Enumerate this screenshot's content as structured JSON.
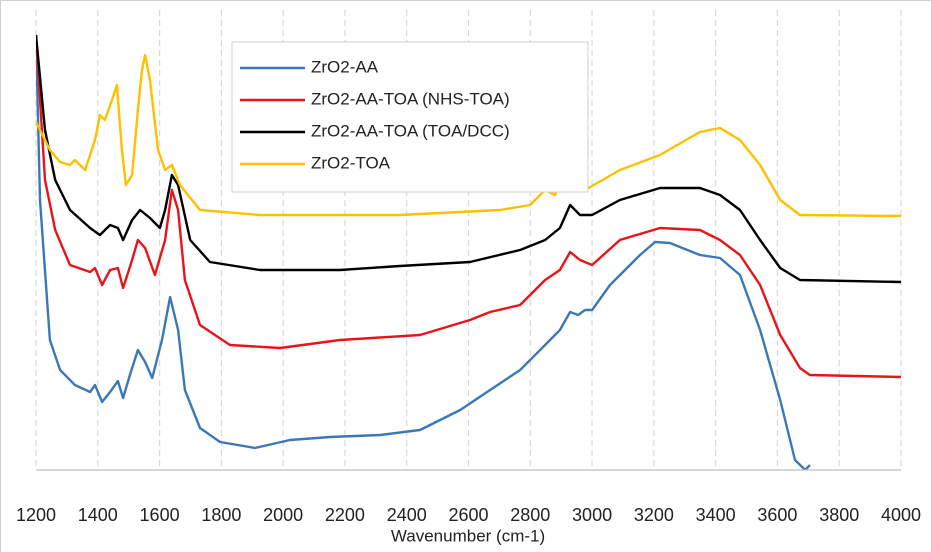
{
  "chart_data": {
    "type": "line",
    "x_label": "Wavenumber (cm-1)",
    "xlim": [
      1200,
      4000
    ],
    "xticks": [
      1200,
      1400,
      1600,
      1800,
      2000,
      2200,
      2400,
      2600,
      2800,
      3000,
      3200,
      3400,
      3600,
      3800,
      4000
    ],
    "ylim": [
      0,
      460
    ],
    "grid": true,
    "legend": "top",
    "series": [
      {
        "name": "ZrO2-AA",
        "color": "#3b78b8",
        "x": [
          1200,
          1213,
          1245,
          1278,
          1326,
          1375,
          1391,
          1414,
          1440,
          1465,
          1482,
          1504,
          1530,
          1553,
          1576,
          1608,
          1634,
          1660,
          1682,
          1731,
          1796,
          1909,
          2022,
          2152,
          2314,
          2443,
          2573,
          2670,
          2767,
          2848,
          2896,
          2929,
          2955,
          2977,
          3000,
          3058,
          3155,
          3204,
          3252,
          3349,
          3414,
          3479,
          3544,
          3609,
          3657,
          3690,
          3705
        ],
        "values": [
          435,
          270,
          130,
          100,
          85,
          78,
          85,
          68,
          78,
          89,
          72,
          95,
          120,
          108,
          92,
          130,
          173,
          140,
          80,
          42,
          28,
          22,
          30,
          33,
          35,
          40,
          60,
          80,
          100,
          125,
          140,
          158,
          155,
          160,
          160,
          185,
          215,
          228,
          227,
          215,
          212,
          195,
          140,
          70,
          10,
          0,
          5
        ]
      },
      {
        "name": "ZrO2-AA-TOA (NHS-TOA)",
        "color": "#e8141b",
        "x": [
          1200,
          1229,
          1262,
          1310,
          1375,
          1391,
          1414,
          1440,
          1465,
          1482,
          1511,
          1530,
          1553,
          1585,
          1618,
          1640,
          1660,
          1682,
          1731,
          1828,
          1990,
          2184,
          2443,
          2605,
          2670,
          2767,
          2848,
          2896,
          2929,
          2961,
          3000,
          3090,
          3220,
          3349,
          3414,
          3479,
          3544,
          3609,
          3673,
          3705,
          4000
        ],
        "values": [
          435,
          290,
          240,
          205,
          198,
          202,
          185,
          200,
          202,
          182,
          210,
          230,
          222,
          195,
          230,
          280,
          260,
          190,
          145,
          125,
          122,
          130,
          135,
          150,
          158,
          165,
          190,
          200,
          218,
          210,
          205,
          230,
          242,
          240,
          230,
          215,
          185,
          135,
          102,
          95,
          93
        ]
      },
      {
        "name": "ZrO2-AA-TOA (TOA/DCC)",
        "color": "#000000",
        "x": [
          1200,
          1229,
          1262,
          1310,
          1375,
          1407,
          1440,
          1465,
          1482,
          1511,
          1537,
          1569,
          1601,
          1618,
          1640,
          1660,
          1699,
          1763,
          1925,
          2184,
          2378,
          2605,
          2767,
          2848,
          2896,
          2929,
          2961,
          3000,
          3090,
          3220,
          3349,
          3414,
          3479,
          3544,
          3609,
          3673,
          4000
        ],
        "values": [
          435,
          340,
          290,
          260,
          242,
          235,
          245,
          242,
          230,
          250,
          260,
          252,
          242,
          260,
          295,
          285,
          230,
          208,
          200,
          200,
          204,
          208,
          220,
          230,
          242,
          265,
          255,
          255,
          270,
          282,
          282,
          275,
          260,
          230,
          202,
          190,
          188
        ]
      },
      {
        "name": "ZrO2-TOA",
        "color": "#ffc000",
        "x": [
          1200,
          1213,
          1229,
          1245,
          1278,
          1310,
          1326,
          1359,
          1391,
          1407,
          1423,
          1446,
          1462,
          1478,
          1491,
          1511,
          1530,
          1543,
          1553,
          1569,
          1595,
          1618,
          1640,
          1666,
          1731,
          1925,
          2378,
          2702,
          2799,
          2848,
          2880,
          2922,
          2945,
          2977,
          3090,
          3220,
          3349,
          3414,
          3479,
          3544,
          3609,
          3673,
          4000
        ],
        "values": [
          348,
          340,
          330,
          320,
          308,
          305,
          310,
          300,
          330,
          355,
          350,
          370,
          385,
          320,
          285,
          295,
          360,
          400,
          415,
          390,
          320,
          300,
          305,
          285,
          260,
          255,
          255,
          260,
          265,
          280,
          275,
          305,
          295,
          280,
          300,
          315,
          338,
          342,
          330,
          305,
          270,
          255,
          254
        ]
      }
    ]
  }
}
